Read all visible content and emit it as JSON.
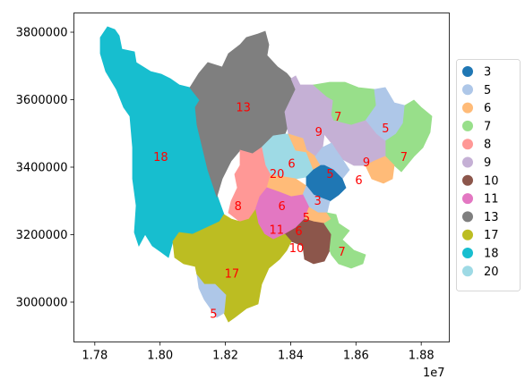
{
  "chart_data": {
    "type": "choropleth-map",
    "x_axis": {
      "ticks": [
        1.78,
        1.8,
        1.82,
        1.84,
        1.86,
        1.88
      ],
      "tick_labels": [
        "1.78",
        "1.80",
        "1.82",
        "1.84",
        "1.86",
        "1.88"
      ],
      "offset_label": "1e7",
      "range": [
        1.7736,
        1.8886
      ]
    },
    "y_axis": {
      "ticks": [
        3000000,
        3200000,
        3400000,
        3600000,
        3800000
      ],
      "tick_labels": [
        "3000000",
        "3200000",
        "3400000",
        "3600000",
        "3800000"
      ],
      "range": [
        2882000,
        3857000
      ]
    },
    "legend": {
      "placement": "right-outside",
      "entries": [
        {
          "label": "3",
          "color": "#1f77b4"
        },
        {
          "label": "5",
          "color": "#aec7e8"
        },
        {
          "label": "6",
          "color": "#ffbb78"
        },
        {
          "label": "7",
          "color": "#98df8a"
        },
        {
          "label": "8",
          "color": "#ff9896"
        },
        {
          "label": "9",
          "color": "#c5b0d5"
        },
        {
          "label": "10",
          "color": "#8c564b"
        },
        {
          "label": "11",
          "color": "#e377c2"
        },
        {
          "label": "13",
          "color": "#7f7f7f"
        },
        {
          "label": "17",
          "color": "#bcbd22"
        },
        {
          "label": "18",
          "color": "#17becf"
        },
        {
          "label": "20",
          "color": "#9edae5"
        }
      ]
    },
    "region_labels": [
      {
        "text": "18",
        "x": 1.8002,
        "y": 3430000
      },
      {
        "text": "13",
        "x": 1.8255,
        "y": 3577000
      },
      {
        "text": "7",
        "x": 1.8545,
        "y": 3550000
      },
      {
        "text": "5",
        "x": 1.8691,
        "y": 3515000
      },
      {
        "text": "9",
        "x": 1.8486,
        "y": 3505000
      },
      {
        "text": "7",
        "x": 1.8747,
        "y": 3430000
      },
      {
        "text": "9",
        "x": 1.8632,
        "y": 3415000
      },
      {
        "text": "6",
        "x": 1.8403,
        "y": 3410000
      },
      {
        "text": "20",
        "x": 1.8358,
        "y": 3380000
      },
      {
        "text": "5",
        "x": 1.8521,
        "y": 3380000
      },
      {
        "text": "6",
        "x": 1.8609,
        "y": 3362000
      },
      {
        "text": "3",
        "x": 1.8483,
        "y": 3300000
      },
      {
        "text": "8",
        "x": 1.8239,
        "y": 3285000
      },
      {
        "text": "6",
        "x": 1.8373,
        "y": 3285000
      },
      {
        "text": "5",
        "x": 1.8448,
        "y": 3250000
      },
      {
        "text": "11",
        "x": 1.8357,
        "y": 3215000
      },
      {
        "text": "6",
        "x": 1.8425,
        "y": 3210000
      },
      {
        "text": "10",
        "x": 1.8418,
        "y": 3160000
      },
      {
        "text": "7",
        "x": 1.8557,
        "y": 3150000
      },
      {
        "text": "17",
        "x": 1.822,
        "y": 3085000
      },
      {
        "text": "5",
        "x": 1.8164,
        "y": 2965000
      }
    ]
  }
}
